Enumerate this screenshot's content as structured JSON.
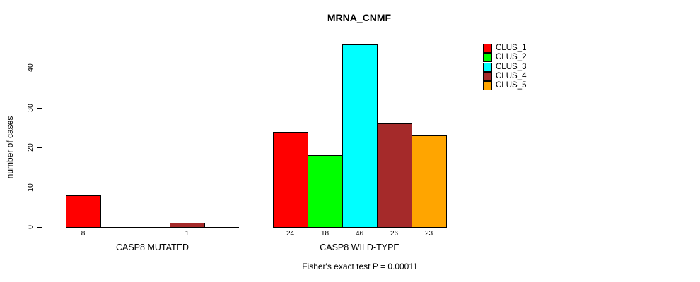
{
  "title": "MRNA_CNMF",
  "y_axis": {
    "label": "number of cases"
  },
  "footer": "Fisher's exact test P = 0.00011",
  "legend": {
    "items": [
      {
        "label": "CLUS_1",
        "color": "#FF0000"
      },
      {
        "label": "CLUS_2",
        "color": "#00FF00"
      },
      {
        "label": "CLUS_3",
        "color": "#00FFFF"
      },
      {
        "label": "CLUS_4",
        "color": "#A52A2A"
      },
      {
        "label": "CLUS_5",
        "color": "#FFA500"
      }
    ]
  },
  "chart_data": {
    "type": "bar",
    "title": "MRNA_CNMF",
    "xlabel": "",
    "ylabel": "number of cases",
    "ylim": [
      0,
      46
    ],
    "yticks": [
      0,
      10,
      20,
      30,
      40
    ],
    "grid": false,
    "legend_position": "top-right",
    "categories": [
      "CASP8 MUTATED",
      "CASP8 WILD-TYPE"
    ],
    "series": [
      {
        "name": "CLUS_1",
        "color": "#FF0000",
        "values": [
          8,
          24
        ]
      },
      {
        "name": "CLUS_2",
        "color": "#00FF00",
        "values": [
          0,
          18
        ]
      },
      {
        "name": "CLUS_3",
        "color": "#00FFFF",
        "values": [
          0,
          46
        ]
      },
      {
        "name": "CLUS_4",
        "color": "#A52A2A",
        "values": [
          1,
          26
        ]
      },
      {
        "name": "CLUS_5",
        "color": "#FFA500",
        "values": [
          0,
          23
        ]
      }
    ],
    "bar_value_labels_shown": [
      "8",
      "1",
      "24",
      "18",
      "46",
      "26",
      "23"
    ],
    "zero_value_bars_hidden": true,
    "annotation": "Fisher's exact test P = 0.00011"
  }
}
